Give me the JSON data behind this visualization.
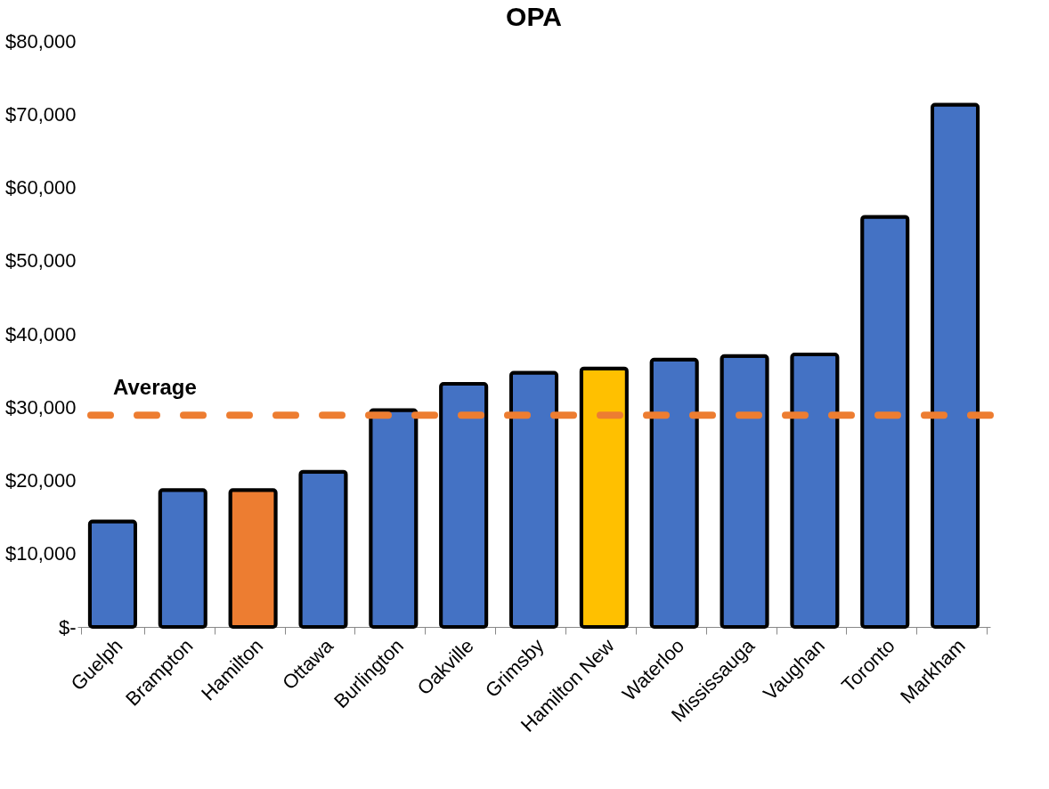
{
  "chart_data": {
    "type": "bar",
    "title": "OPA",
    "categories": [
      "Guelph",
      "Brampton",
      "Hamilton",
      "Ottawa",
      "Burlington",
      "Oakville",
      "Grimsby",
      "Hamilton New",
      "Waterloo",
      "Mississauga",
      "Vaughan",
      "Toronto",
      "Markham"
    ],
    "values": [
      14400,
      18700,
      18700,
      21200,
      29600,
      33200,
      34700,
      35300,
      36500,
      37000,
      37200,
      56000,
      71300
    ],
    "colors": [
      "#4472c4",
      "#4472c4",
      "#ed7d31",
      "#4472c4",
      "#4472c4",
      "#4472c4",
      "#4472c4",
      "#ffc000",
      "#4472c4",
      "#4472c4",
      "#4472c4",
      "#4472c4",
      "#4472c4"
    ],
    "ylim": [
      0,
      80000
    ],
    "yticks": [
      {
        "value": 0,
        "label": "$-"
      },
      {
        "value": 10000,
        "label": "$10,000"
      },
      {
        "value": 20000,
        "label": "$20,000"
      },
      {
        "value": 30000,
        "label": "$30,000"
      },
      {
        "value": 40000,
        "label": "$40,000"
      },
      {
        "value": 50000,
        "label": "$50,000"
      },
      {
        "value": 60000,
        "label": "$60,000"
      },
      {
        "value": 70000,
        "label": "$70,000"
      },
      {
        "value": 80000,
        "label": "$80,000"
      }
    ],
    "ref_lines": [
      {
        "axis": "y",
        "value": 28900,
        "label": "Average",
        "color": "#ed7d31",
        "line_style": "dashed"
      }
    ],
    "grid": false
  }
}
